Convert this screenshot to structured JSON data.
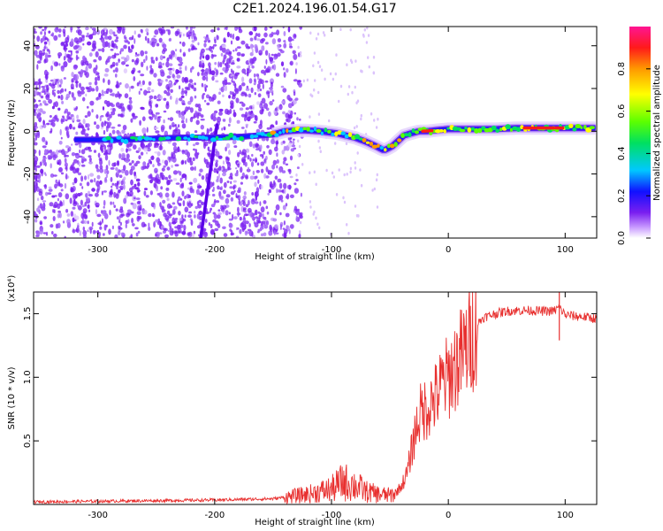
{
  "title": "C2E1.2024.196.01.54.G17",
  "colors": {
    "snr_line": "#e8302f",
    "doppler_track": "#ff2b2b",
    "noise_scatter": "#7a1ff0",
    "frame": "#000000"
  },
  "chart_data": [
    {
      "type": "heatmap",
      "xlabel": "Height of straight line (km)",
      "ylabel": "Frequency (Hz)",
      "xlim": [
        -355,
        127
      ],
      "ylim": [
        -50,
        49
      ],
      "xticks": [
        -300,
        -200,
        -100,
        0,
        100
      ],
      "yticks": [
        -40,
        -20,
        0,
        20,
        40
      ],
      "colorbar": {
        "label": "Normalized spectral amplitude",
        "range": [
          0.0,
          1.0
        ],
        "ticks": [
          "0.0",
          "0.2",
          "0.4",
          "0.6",
          "0.8"
        ],
        "tick_values": [
          0.0,
          0.2,
          0.4,
          0.6,
          0.8
        ],
        "colors": [
          "#ffffff",
          "#c99cff",
          "#7a1ff0",
          "#1010ff",
          "#00c8ff",
          "#00e060",
          "#5cff00",
          "#ffff00",
          "#ff9900",
          "#ff1a1a",
          "#ff1493"
        ]
      },
      "track": {
        "x": [
          -305,
          -280,
          -255,
          -230,
          -200,
          -175,
          -150,
          -140,
          -125,
          -110,
          -95,
          -80,
          -70,
          -62,
          -55,
          -48,
          -42,
          -38,
          -32,
          -25,
          -18,
          -10,
          0,
          20,
          40,
          60,
          80,
          100,
          127
        ],
        "y": [
          -4,
          -4,
          -3.5,
          -3,
          -3,
          -2.5,
          -1.5,
          0,
          0.5,
          0,
          -1,
          -3,
          -5,
          -7,
          -9,
          -7,
          -4,
          -2,
          -1,
          0,
          0,
          0.5,
          1,
          1,
          1,
          1.5,
          1.5,
          1.5,
          1.5
        ]
      },
      "diagonal_streak": {
        "x": [
          -212,
          -198
        ],
        "y": [
          -50,
          3
        ]
      }
    },
    {
      "type": "line",
      "xlabel": "Height of straight line (km)",
      "ylabel": "SNR (10 * v/v)",
      "y_multiplier": "(x10⁴)",
      "xlim": [
        -355,
        127
      ],
      "ylim": [
        0,
        16700
      ],
      "xticks": [
        -300,
        -200,
        -100,
        0,
        100
      ],
      "yticks": [
        5000,
        10000,
        15000
      ],
      "ytick_labels": [
        "0.5",
        "1.0",
        "1.5"
      ],
      "series": [
        {
          "x": [
            -355,
            -300,
            -250,
            -200,
            -150,
            -120,
            -100,
            -90,
            -80,
            -70,
            -60,
            -50,
            -45,
            -40,
            -35,
            -30,
            -25,
            -20,
            -15,
            -10,
            -5,
            0,
            5,
            10,
            15,
            20,
            25,
            30,
            40,
            50,
            60,
            70,
            80,
            90,
            95,
            100,
            110,
            120,
            127
          ],
          "y": [
            200,
            250,
            300,
            350,
            450,
            800,
            1200,
            1800,
            1500,
            1000,
            800,
            700,
            900,
            1500,
            2500,
            5000,
            7000,
            7500,
            8000,
            8500,
            9500,
            10000,
            10800,
            11500,
            12200,
            13200,
            14200,
            14700,
            15000,
            15200,
            15250,
            15250,
            15200,
            15200,
            15500,
            14900,
            14800,
            14700,
            14600
          ]
        }
      ]
    }
  ]
}
